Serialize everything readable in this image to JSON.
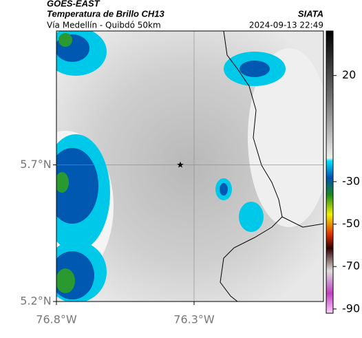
{
  "header": {
    "satellite": "GOES-EAST",
    "product": "Temperatura de Brillo CH13",
    "organization": "SIATA",
    "route": "Vía Medellín - Quibdó 50km",
    "datetime": "2024-09-13 22:49"
  },
  "map": {
    "xlim": [
      -76.8,
      -75.83
    ],
    "ylim": [
      5.2,
      6.19
    ],
    "xticks": [
      {
        "value": -76.8,
        "label": "76.8°W"
      },
      {
        "value": -76.3,
        "label": "76.3°W"
      }
    ],
    "yticks": [
      {
        "value": 5.7,
        "label": "5.7°N"
      },
      {
        "value": 5.2,
        "label": "5.2°N"
      }
    ],
    "marker": {
      "lon": -76.35,
      "lat": 5.7
    }
  },
  "colorbar": {
    "lim": [
      -92,
      41
    ],
    "ticks": [
      20,
      -30,
      -50,
      -70,
      -90
    ]
  }
}
